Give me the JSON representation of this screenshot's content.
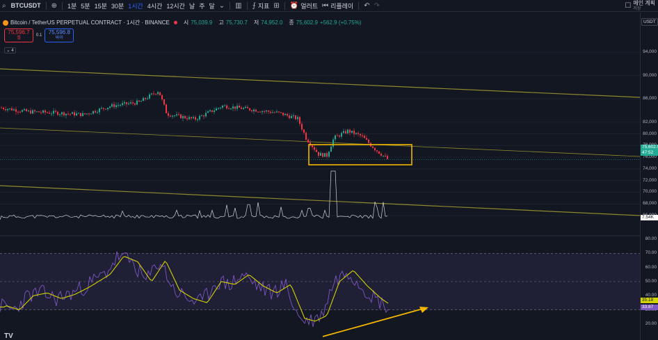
{
  "toolbar": {
    "symbol": "BTCUSDT",
    "intervals": [
      {
        "label": "1분",
        "active": false
      },
      {
        "label": "5분",
        "active": false
      },
      {
        "label": "15분",
        "active": false
      },
      {
        "label": "30분",
        "active": false
      },
      {
        "label": "1시간",
        "active": true
      },
      {
        "label": "4시간",
        "active": false
      },
      {
        "label": "12시간",
        "active": false
      },
      {
        "label": "날",
        "active": false
      },
      {
        "label": "주",
        "active": false
      },
      {
        "label": "달",
        "active": false
      }
    ],
    "indicators_label": "지표",
    "alert_label": "얼러트",
    "replay_label": "리플레이",
    "main_layout_label": "메인 계획",
    "main_layout_sub": "저장"
  },
  "legend": {
    "title": "Bitcoin / TetherUS PERPETUAL CONTRACT · 1시간 · BINANCE",
    "open_label": "시",
    "open": "75,039.9",
    "high_label": "고",
    "high": "75,730.7",
    "low_label": "저",
    "low": "74,952.0",
    "close_label": "종",
    "close": "75,602.9",
    "change": "+562.9 (+0.75%)"
  },
  "trade": {
    "sell_price": "75,596.7",
    "sell_label": "셀",
    "spread": "0.1",
    "buy_price": "75,596.8",
    "buy_label": "바이"
  },
  "indicator_count": "4",
  "price_axis": {
    "currency": "USDT",
    "labels": [
      {
        "text": "94,000",
        "value": 94000
      },
      {
        "text": "90,000",
        "value": 90000
      },
      {
        "text": "86,000",
        "value": 86000
      },
      {
        "text": "82,000",
        "value": 82000
      },
      {
        "text": "80,000",
        "value": 80000
      },
      {
        "text": "78,000",
        "value": 78000
      },
      {
        "text": "76,000",
        "value": 76000
      },
      {
        "text": "74,000",
        "value": 74000
      },
      {
        "text": "72,000",
        "value": 72000
      },
      {
        "text": "70,000",
        "value": 70000
      },
      {
        "text": "68,000",
        "value": 68000
      },
      {
        "text": "66,000",
        "value": 66000
      }
    ],
    "last_price_tag": "75,602.9",
    "countdown_tag": "47:52",
    "volume_tag": "7.54K"
  },
  "rsi_axis": {
    "labels": [
      {
        "text": "80.00",
        "value": 80
      },
      {
        "text": "70.00",
        "value": 70
      },
      {
        "text": "60.00",
        "value": 60
      },
      {
        "text": "50.00",
        "value": 50
      },
      {
        "text": "40.00",
        "value": 40
      },
      {
        "text": "30.00",
        "value": 30
      },
      {
        "text": "20.00",
        "value": 20
      }
    ],
    "ma_tag": "35.18",
    "rsi_tag": "33.87"
  },
  "colors": {
    "up": "#22ab94",
    "down": "#f23645",
    "channel": "#8f8a2e",
    "highlight_box": "#f5b700",
    "rsi": "#7e57c2",
    "rsi_ma": "#d4d400",
    "arrow": "#f5b700"
  },
  "logo_text": "TV"
}
